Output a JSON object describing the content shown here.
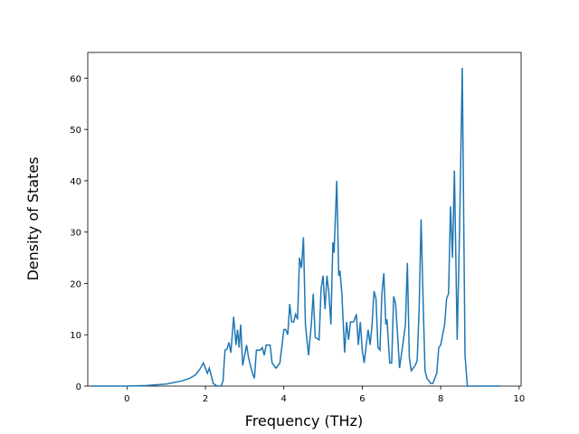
{
  "chart_data": {
    "type": "line",
    "x_label": "Frequency (THz)",
    "y_label": "Density of States",
    "color": "#1f77b4",
    "grid": false,
    "xlim": [
      -1.0,
      10.05
    ],
    "ylim": [
      0,
      65
    ],
    "xticks": [
      0,
      2,
      4,
      6,
      8,
      10
    ],
    "yticks": [
      0,
      10,
      20,
      30,
      40,
      50,
      60
    ],
    "x": [
      -0.9,
      0,
      0.5,
      1.0,
      1.4,
      1.6,
      1.75,
      1.85,
      1.95,
      2.05,
      2.1,
      2.2,
      2.3,
      2.4,
      2.45,
      2.5,
      2.55,
      2.6,
      2.65,
      2.72,
      2.78,
      2.82,
      2.86,
      2.9,
      2.95,
      3.0,
      3.05,
      3.1,
      3.2,
      3.25,
      3.3,
      3.4,
      3.45,
      3.5,
      3.55,
      3.65,
      3.7,
      3.8,
      3.9,
      4.0,
      4.05,
      4.1,
      4.15,
      4.2,
      4.25,
      4.3,
      4.35,
      4.4,
      4.45,
      4.5,
      4.55,
      4.63,
      4.7,
      4.75,
      4.8,
      4.9,
      4.95,
      5.0,
      5.05,
      5.1,
      5.15,
      5.2,
      5.25,
      5.28,
      5.35,
      5.4,
      5.43,
      5.48,
      5.55,
      5.6,
      5.65,
      5.7,
      5.78,
      5.85,
      5.9,
      5.95,
      6.0,
      6.05,
      6.1,
      6.15,
      6.2,
      6.25,
      6.3,
      6.35,
      6.4,
      6.45,
      6.5,
      6.55,
      6.6,
      6.63,
      6.7,
      6.75,
      6.8,
      6.85,
      6.9,
      6.95,
      7.05,
      7.1,
      7.15,
      7.2,
      7.25,
      7.35,
      7.4,
      7.45,
      7.5,
      7.55,
      7.6,
      7.65,
      7.75,
      7.8,
      7.9,
      7.95,
      8.0,
      8.05,
      8.1,
      8.15,
      8.2,
      8.25,
      8.3,
      8.35,
      8.42,
      8.48,
      8.55,
      8.62,
      8.68,
      9.5
    ],
    "values": [
      0,
      0,
      0.1,
      0.4,
      1,
      1.5,
      2.2,
      3.2,
      4.5,
      2.5,
      3.5,
      0.5,
      0,
      0,
      1,
      7,
      7.2,
      8.5,
      6.5,
      13.5,
      8,
      11,
      7.5,
      12,
      4,
      6,
      8,
      5.5,
      2.5,
      1.5,
      7,
      7,
      7.5,
      6,
      8,
      8,
      4.5,
      3.5,
      4.5,
      11,
      11,
      10,
      16,
      12.5,
      12.5,
      14,
      13,
      25,
      23,
      29,
      12,
      6,
      12,
      18,
      9.5,
      9,
      19,
      21.5,
      15,
      21.5,
      18,
      12,
      28,
      26,
      40,
      21.5,
      22.5,
      18,
      6.5,
      12.5,
      9,
      12.5,
      12.5,
      14,
      8,
      12.5,
      7,
      4.5,
      8,
      11,
      8,
      12,
      18.5,
      17,
      7.5,
      7,
      18,
      22,
      12,
      13,
      4.5,
      4.5,
      17.5,
      16,
      10,
      3.5,
      9,
      12,
      24,
      5.5,
      3,
      4,
      5,
      15,
      32.5,
      17,
      3,
      1.5,
      0.5,
      0.5,
      2.5,
      7.5,
      8,
      10,
      12,
      17,
      18,
      35,
      25,
      42,
      9,
      30,
      62,
      6,
      0,
      0
    ]
  }
}
